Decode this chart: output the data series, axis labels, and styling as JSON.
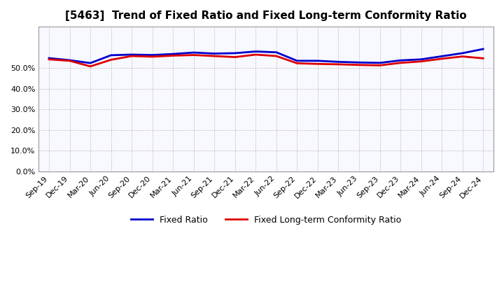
{
  "title": "[5463]  Trend of Fixed Ratio and Fixed Long-term Conformity Ratio",
  "background_color": "#ffffff",
  "plot_background": "#f8f8ff",
  "grid_color": "#aaaaaa",
  "line1_color": "#0000cc",
  "line2_color": "#dd0000",
  "line1_label": "Fixed Ratio",
  "line2_label": "Fixed Long-term Conformity Ratio",
  "x_labels": [
    "Sep-19",
    "Dec-19",
    "Mar-20",
    "Jun-20",
    "Sep-20",
    "Dec-20",
    "Mar-21",
    "Jun-21",
    "Sep-21",
    "Dec-21",
    "Mar-22",
    "Jun-22",
    "Sep-22",
    "Dec-22",
    "Mar-23",
    "Jun-23",
    "Sep-23",
    "Dec-23",
    "Mar-24",
    "Jun-24",
    "Sep-24",
    "Dec-24"
  ],
  "line1_values": [
    0.548,
    0.538,
    0.524,
    0.562,
    0.565,
    0.563,
    0.568,
    0.575,
    0.57,
    0.572,
    0.58,
    0.576,
    0.535,
    0.535,
    0.53,
    0.527,
    0.525,
    0.537,
    0.542,
    0.557,
    0.572,
    0.592
  ],
  "line2_values": [
    0.542,
    0.535,
    0.508,
    0.54,
    0.558,
    0.555,
    0.56,
    0.563,
    0.558,
    0.553,
    0.565,
    0.558,
    0.523,
    0.52,
    0.518,
    0.515,
    0.513,
    0.525,
    0.532,
    0.545,
    0.556,
    0.547
  ],
  "ylim": [
    0.0,
    0.7
  ],
  "yticks": [
    0.0,
    0.1,
    0.2,
    0.3,
    0.4,
    0.5
  ],
  "title_fontsize": 11,
  "tick_fontsize": 8,
  "legend_fontsize": 9,
  "linewidth": 2.0
}
